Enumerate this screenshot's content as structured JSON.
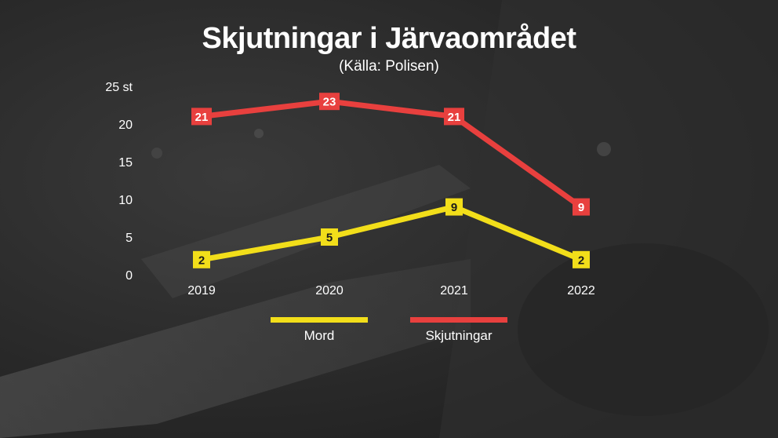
{
  "title": "Skjutningar i Järvaområdet",
  "subtitle": "(Källa: Polisen)",
  "colors": {
    "mord": "#f2de1a",
    "skjutningar": "#e8403e"
  },
  "chart_data": {
    "type": "line",
    "x": [
      "2019",
      "2020",
      "2021",
      "2022"
    ],
    "y_unit_label": "25 st",
    "yticks": [
      "0",
      "5",
      "10",
      "15",
      "20"
    ],
    "ylim": [
      0,
      25
    ],
    "grid": false,
    "legend_position": "bottom",
    "series": [
      {
        "name": "Mord",
        "values": [
          2,
          5,
          9,
          2
        ],
        "color": "#f2de1a",
        "label_text_color": "#1a1a1a"
      },
      {
        "name": "Skjutningar",
        "values": [
          21,
          23,
          21,
          9
        ],
        "color": "#e8403e",
        "label_text_color": "#ffffff"
      }
    ]
  },
  "legend": {
    "items": [
      {
        "label": "Mord",
        "color": "#f2de1a"
      },
      {
        "label": "Skjutningar",
        "color": "#e8403e"
      }
    ]
  }
}
